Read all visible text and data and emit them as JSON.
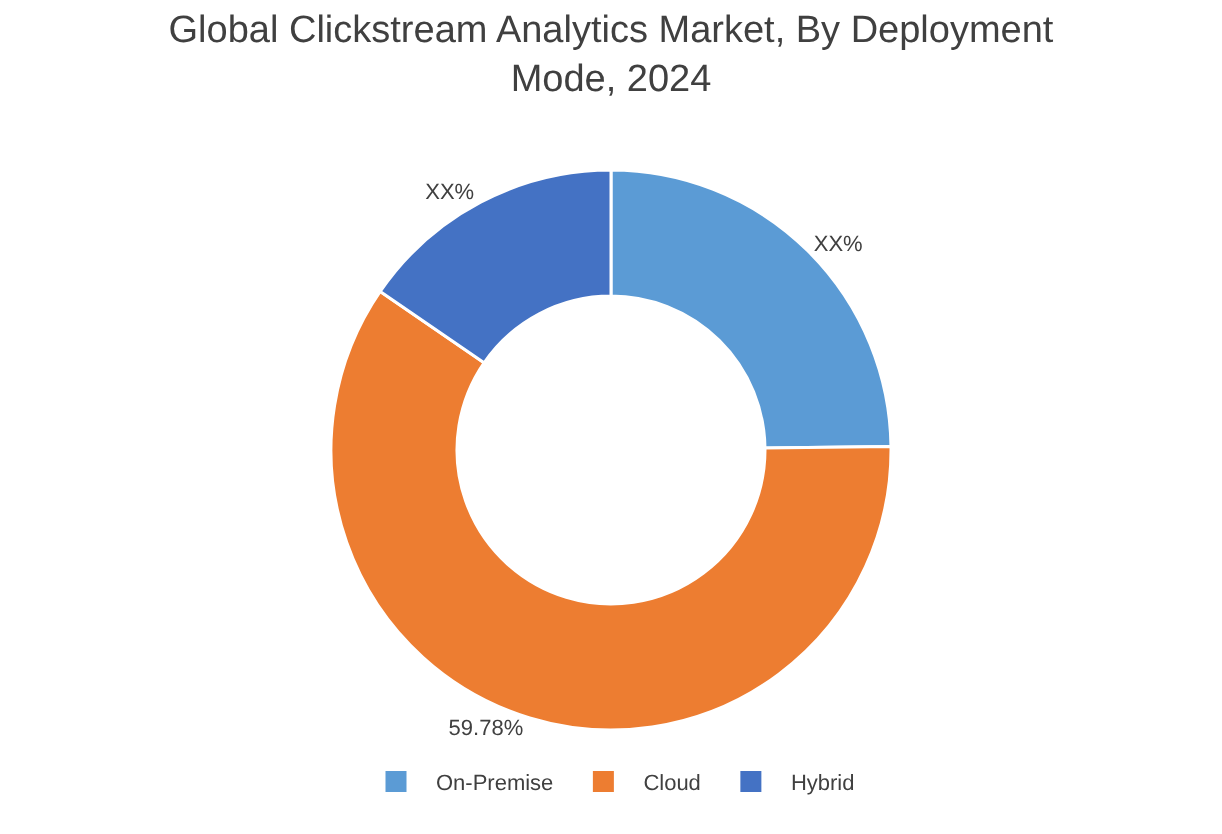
{
  "chart_data": {
    "type": "donut",
    "title": "Global Clickstream Analytics Market, By Deployment Mode, 2024",
    "categories": [
      "On-Premise",
      "Cloud",
      "Hybrid"
    ],
    "values": [
      24.8,
      59.78,
      15.42
    ],
    "colors": [
      "#5b9bd5",
      "#ed7d31",
      "#4472c4"
    ],
    "value_labels": [
      "XX%",
      "59.78%",
      "XX%"
    ],
    "legend": "bottom"
  }
}
